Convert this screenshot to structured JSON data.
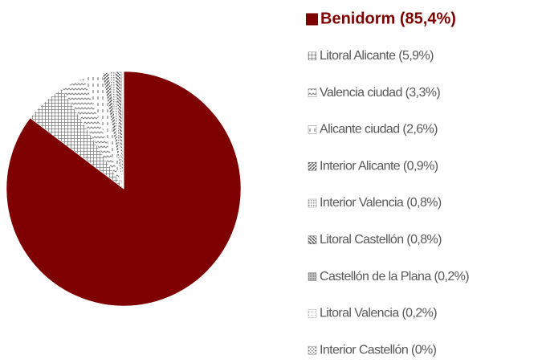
{
  "chart_data": {
    "type": "pie",
    "categories": [
      "Benidorm (85,4%)",
      "Litoral Alicante (5,9%)",
      "Valencia ciudad (3,3%)",
      "Alicante ciudad (2,6%)",
      "Interior Alicante (0,9%)",
      "Interior Valencia (0,8%)",
      "Litoral Castellón (0,8%)",
      "Castellón de la Plana (0,2%)",
      "Litoral Valencia (0,2%)",
      "Interior Castellón (0%)"
    ],
    "values": [
      85.4,
      5.9,
      3.3,
      2.6,
      0.9,
      0.8,
      0.8,
      0.2,
      0.2,
      0
    ],
    "colors": [
      "#7f0000",
      "#7f7f7f",
      "#7f7f7f",
      "#7f7f7f",
      "#595959",
      "#8c8c8c",
      "#595959",
      "#7f7f7f",
      "#a6a6a6",
      "#7f7f7f"
    ],
    "legend": "right"
  }
}
